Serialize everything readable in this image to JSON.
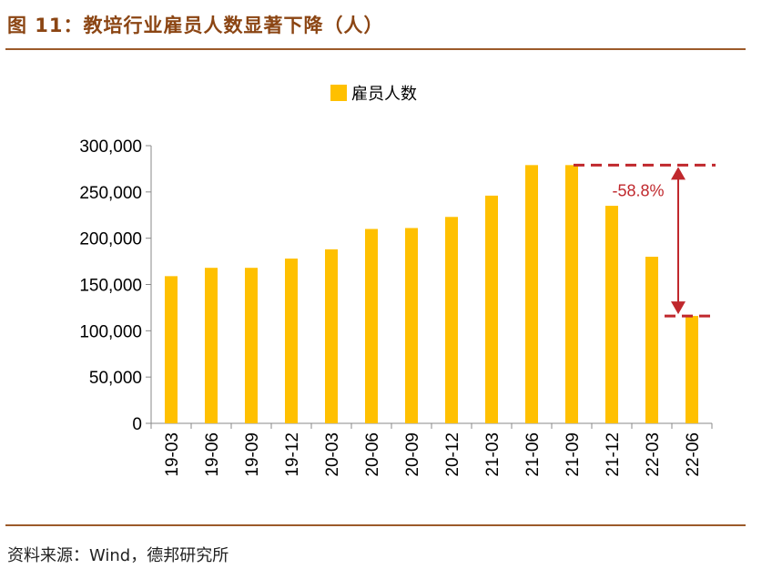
{
  "header": {
    "title": "图 11：教培行业雇员人数显著下降（人）"
  },
  "footer": {
    "source": "资料来源：Wind，德邦研究所"
  },
  "colors": {
    "bar": "#FFC000",
    "accent": "#C0282D",
    "rule": "#9C5A2A",
    "title": "#8B4513"
  },
  "chart_data": {
    "type": "bar",
    "title": "",
    "xlabel": "",
    "ylabel": "",
    "categories": [
      "19-03",
      "19-06",
      "19-09",
      "19-12",
      "20-03",
      "20-06",
      "20-09",
      "20-12",
      "21-03",
      "21-06",
      "21-09",
      "21-12",
      "22-03",
      "22-06"
    ],
    "series": [
      {
        "name": "雇员人数",
        "values": [
          159000,
          168000,
          168000,
          178000,
          188000,
          210000,
          211000,
          223000,
          246000,
          279000,
          279000,
          235000,
          180000,
          116000
        ]
      }
    ],
    "ylim": [
      0,
      300000
    ],
    "yticks": [
      0,
      50000,
      100000,
      150000,
      200000,
      250000,
      300000
    ],
    "ytick_labels": [
      "0",
      "50,000",
      "100,000",
      "150,000",
      "200,000",
      "250,000",
      "300,000"
    ],
    "grid": false,
    "legend": "top-center",
    "annotation": {
      "text": "-58.8%",
      "from_category": "21-09",
      "to_category": "22-06",
      "from_value": 279000,
      "to_value": 116000
    }
  }
}
